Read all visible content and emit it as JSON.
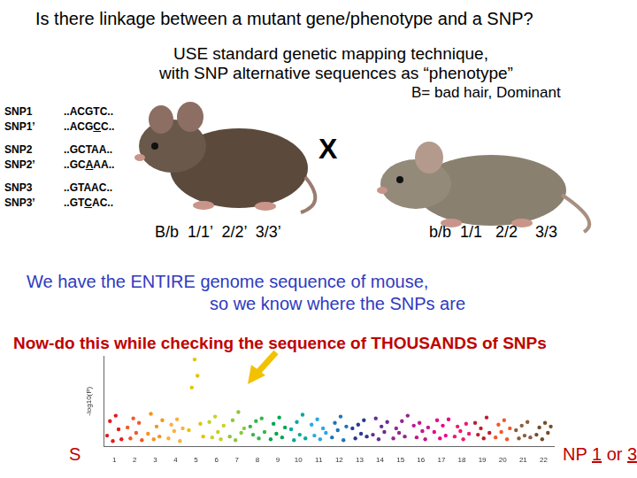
{
  "title": "Is there linkage between a mutant gene/phenotype and a SNP?",
  "subtitle_lines": [
    "USE standard genetic mapping technique,",
    "with SNP alternative sequences as “phenotype”"
  ],
  "allele_note": "B= bad hair, Dominant",
  "snps": [
    {
      "label": "SNP1",
      "seq": [
        "..ACGTC.."
      ]
    },
    {
      "label": "SNP1’",
      "seq": [
        "..ACG",
        "C",
        "C.."
      ]
    },
    {
      "label": "SNP2",
      "seq": [
        "..GCTAA.."
      ]
    },
    {
      "label": "SNP2’",
      "seq": [
        "..GC",
        "A",
        "AA.."
      ]
    },
    {
      "label": "SNP3",
      "seq": [
        "..GTAAC.."
      ]
    },
    {
      "label": "SNP3’",
      "seq": [
        "..GT",
        "C",
        "AC.."
      ]
    }
  ],
  "cross_symbol": "X",
  "genotypes": {
    "left": "B/b  1/1’  2/2’  3/3’",
    "right": "b/b  1/1   2/2    3/3"
  },
  "genome_note": [
    "We have the ENTIRE genome sequence of mouse,",
    "so we know where the SNPs are"
  ],
  "thousands_note": "Now-do this while checking the sequence of THOUSANDS of SNPs",
  "bottom_left": "S",
  "bottom_right": [
    "NP ",
    "1",
    " or ",
    "3"
  ],
  "chart_data": {
    "type": "scatter",
    "ylabel": "-log10(P)",
    "xlim": [
      0.5,
      22.5
    ],
    "xticks": [
      1,
      2,
      3,
      4,
      5,
      6,
      7,
      8,
      9,
      10,
      11,
      12,
      13,
      14,
      15,
      16,
      17,
      18,
      19,
      20,
      21,
      22
    ],
    "ylim": [
      0,
      10
    ],
    "grid": false,
    "tick_labels": "x",
    "marker": "circle",
    "series": [
      {
        "color": "#e41a1c",
        "x": [
          0.65,
          0.79,
          0.93,
          1.07,
          1.21,
          1.35
        ],
        "values": [
          1.2,
          2.8,
          0.6,
          3.4,
          1.9,
          0.8
        ]
      },
      {
        "color": "#f0592b",
        "x": [
          1.65,
          1.79,
          1.93,
          2.07,
          2.21,
          2.35
        ],
        "values": [
          2.1,
          0.9,
          3.1,
          1.5,
          2.6,
          0.7
        ]
      },
      {
        "color": "#f7941d",
        "x": [
          2.65,
          2.79,
          2.93,
          3.07,
          3.21,
          3.35
        ],
        "values": [
          1.4,
          3.6,
          0.8,
          2.2,
          1.1,
          2.9
        ]
      },
      {
        "color": "#fbb040",
        "x": [
          3.65,
          3.79,
          3.93,
          4.07,
          4.21,
          4.35
        ],
        "values": [
          0.9,
          2.4,
          1.7,
          3.0,
          0.6,
          2.0
        ]
      },
      {
        "color": "#e6c200",
        "x": [
          4.65,
          4.79,
          4.93,
          5.07,
          5.21,
          5.35
        ],
        "values": [
          1.8,
          6.5,
          9.6,
          7.8,
          2.5,
          1.1
        ]
      },
      {
        "color": "#c5d31f",
        "x": [
          5.65,
          5.79,
          5.93,
          6.07,
          6.21,
          6.35
        ],
        "values": [
          2.7,
          1.0,
          3.3,
          1.6,
          0.8,
          2.3
        ]
      },
      {
        "color": "#8dc63f",
        "x": [
          6.65,
          6.79,
          6.93,
          7.07,
          7.21,
          7.35
        ],
        "values": [
          1.1,
          2.9,
          0.7,
          3.8,
          1.5,
          2.0
        ]
      },
      {
        "color": "#39b54a",
        "x": [
          7.65,
          7.79,
          7.93,
          8.07,
          8.21,
          8.35
        ],
        "values": [
          2.2,
          1.3,
          2.8,
          0.9,
          3.1,
          1.6
        ]
      },
      {
        "color": "#00a651",
        "x": [
          8.65,
          8.79,
          8.93,
          9.07,
          9.21,
          9.35
        ],
        "values": [
          0.8,
          2.5,
          1.4,
          3.2,
          1.0,
          2.1
        ]
      },
      {
        "color": "#00a99d",
        "x": [
          9.65,
          9.79,
          9.93,
          10.07,
          10.21,
          10.35
        ],
        "values": [
          1.9,
          0.7,
          2.7,
          1.3,
          3.5,
          0.9
        ]
      },
      {
        "color": "#27aae1",
        "x": [
          10.65,
          10.79,
          10.93,
          11.07,
          11.21,
          11.35
        ],
        "values": [
          2.4,
          1.2,
          3.0,
          0.8,
          2.0,
          1.5
        ]
      },
      {
        "color": "#1c75bc",
        "x": [
          11.65,
          11.79,
          11.93,
          12.07,
          12.21,
          12.35
        ],
        "values": [
          1.0,
          2.6,
          1.8,
          3.3,
          0.7,
          2.2
        ]
      },
      {
        "color": "#2b3990",
        "x": [
          12.65,
          12.79,
          12.93,
          13.07,
          13.21,
          13.35
        ],
        "values": [
          2.0,
          0.9,
          2.4,
          1.4,
          2.9,
          1.1
        ]
      },
      {
        "color": "#662d91",
        "x": [
          13.65,
          13.79,
          13.93,
          14.07,
          14.21,
          14.35
        ],
        "values": [
          1.3,
          3.1,
          0.8,
          2.2,
          1.6,
          2.7
        ]
      },
      {
        "color": "#92278f",
        "x": [
          14.65,
          14.79,
          14.93,
          15.07,
          15.21,
          15.35
        ],
        "values": [
          0.9,
          2.0,
          1.5,
          2.8,
          1.1,
          3.4
        ]
      },
      {
        "color": "#c2188b",
        "x": [
          15.65,
          15.79,
          15.93,
          16.07,
          16.21,
          16.35
        ],
        "values": [
          2.3,
          1.0,
          2.6,
          1.7,
          0.8,
          2.1
        ]
      },
      {
        "color": "#ec008c",
        "x": [
          16.65,
          16.79,
          16.93,
          17.07,
          17.21,
          17.35
        ],
        "values": [
          1.6,
          2.9,
          0.9,
          2.3,
          1.2,
          3.0
        ]
      },
      {
        "color": "#ed1c6f",
        "x": [
          17.65,
          17.79,
          17.93,
          18.07,
          18.21,
          18.35
        ],
        "values": [
          1.1,
          2.2,
          1.7,
          0.8,
          2.5,
          1.4
        ]
      },
      {
        "color": "#be1e2d",
        "x": [
          18.65,
          18.79,
          18.93,
          19.07,
          19.21,
          19.35
        ],
        "values": [
          2.6,
          1.3,
          2.0,
          0.9,
          3.2,
          1.5
        ]
      },
      {
        "color": "#f15a29",
        "x": [
          19.65,
          19.79,
          19.93,
          20.07,
          20.21,
          20.35
        ],
        "values": [
          1.0,
          2.4,
          1.6,
          2.9,
          0.8,
          2.0
        ]
      },
      {
        "color": "#8b5e3c",
        "x": [
          20.65,
          20.79,
          20.93,
          21.07,
          21.21,
          21.35
        ],
        "values": [
          1.8,
          0.9,
          2.3,
          1.2,
          2.7,
          1.0
        ]
      },
      {
        "color": "#754c24",
        "x": [
          21.65,
          21.79,
          21.93,
          22.07,
          22.21,
          22.35
        ],
        "values": [
          1.3,
          2.1,
          0.8,
          2.6,
          1.5,
          2.2
        ]
      }
    ]
  }
}
